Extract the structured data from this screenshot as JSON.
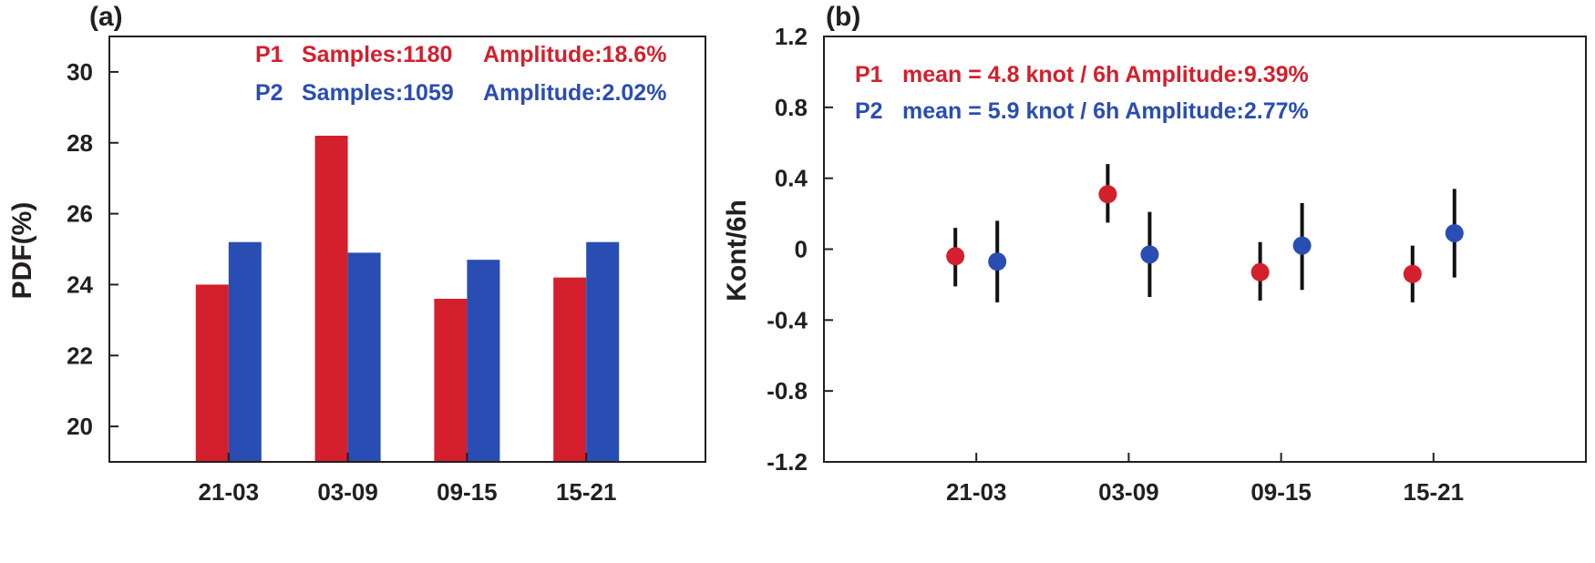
{
  "colors": {
    "P1": "#d41f2c",
    "P2": "#2a4db3",
    "axis": "#231f20"
  },
  "chart_data": [
    {
      "type": "bar",
      "panel_label": "(a)",
      "ylabel": "PDF(%)",
      "xlabel": "",
      "ylim": [
        19,
        31
      ],
      "yticks": [
        "20",
        "22",
        "24",
        "26",
        "28",
        "30"
      ],
      "categories": [
        "21-03",
        "03-09",
        "09-15",
        "15-21"
      ],
      "series": [
        {
          "name": "P1",
          "color": "#d41f2c",
          "values": [
            24.0,
            28.2,
            23.6,
            24.2
          ]
        },
        {
          "name": "P2",
          "color": "#2a4db3",
          "values": [
            25.2,
            24.9,
            24.7,
            25.2
          ]
        }
      ],
      "legend": [
        {
          "series": "P1",
          "label": "P1",
          "samples": "Samples:1180",
          "amplitude": "Amplitude:18.6%"
        },
        {
          "series": "P2",
          "label": "P2",
          "samples": "Samples:1059",
          "amplitude": "Amplitude:2.02%"
        }
      ],
      "legend_position": "top-right",
      "grid": false
    },
    {
      "type": "scatter",
      "panel_label": "(b)",
      "ylabel": "Kont/6h",
      "xlabel": "",
      "ylim": [
        -1.2,
        1.2
      ],
      "yticks": [
        "1.2",
        "0.8",
        "0.4",
        "0",
        "-0.4",
        "-0.8",
        "-1.2"
      ],
      "categories": [
        "21-03",
        "03-09",
        "09-15",
        "15-21"
      ],
      "series": [
        {
          "name": "P1",
          "color": "#d41f2c",
          "values": [
            -0.04,
            0.31,
            -0.13,
            -0.14
          ],
          "error_low": [
            -0.21,
            0.15,
            -0.29,
            -0.3
          ],
          "error_high": [
            0.12,
            0.48,
            0.04,
            0.02
          ]
        },
        {
          "name": "P2",
          "color": "#2a4db3",
          "values": [
            -0.07,
            -0.03,
            0.02,
            0.09
          ],
          "error_low": [
            -0.3,
            -0.27,
            -0.23,
            -0.16
          ],
          "error_high": [
            0.16,
            0.21,
            0.26,
            0.34
          ]
        }
      ],
      "legend": [
        {
          "series": "P1",
          "label": "P1",
          "text": "mean = 4.8 knot / 6h Amplitude:9.39%"
        },
        {
          "series": "P2",
          "label": "P2",
          "text": "mean = 5.9 knot / 6h Amplitude:2.77%"
        }
      ],
      "legend_position": "top-left",
      "grid": false
    }
  ]
}
